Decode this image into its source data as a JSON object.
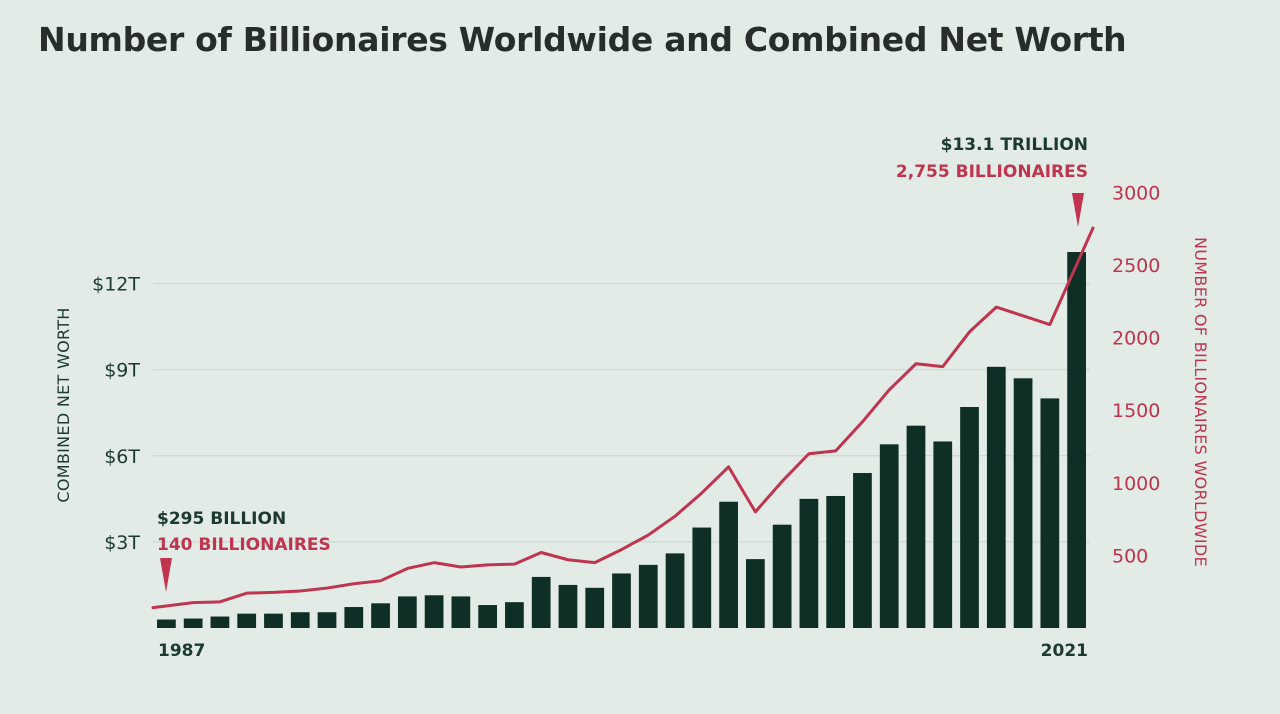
{
  "title": "Number of Billionaires Worldwide and Combined Net Worth",
  "colors": {
    "background": "#e2ebe5",
    "bars": "#0f2e26",
    "line": "#c0344f",
    "text_dark": "#1c3a2e",
    "grid": "#c9d5ce"
  },
  "chart_data": {
    "type": "bar",
    "categories": [
      1987,
      1988,
      1989,
      1990,
      1991,
      1992,
      1993,
      1994,
      1995,
      1996,
      1997,
      1998,
      1999,
      2000,
      2001,
      2002,
      2003,
      2004,
      2005,
      2006,
      2007,
      2008,
      2009,
      2010,
      2011,
      2012,
      2013,
      2014,
      2015,
      2016,
      2017,
      2018,
      2019,
      2020,
      2021
    ],
    "xtick_labels": {
      "first": "1987",
      "last": "2021"
    },
    "series": [
      {
        "axis": "left",
        "type": "bar",
        "values": [
          0.295,
          0.33,
          0.4,
          0.5,
          0.5,
          0.55,
          0.55,
          0.73,
          0.86,
          1.1,
          1.14,
          1.1,
          0.8,
          0.9,
          1.78,
          1.5,
          1.4,
          1.9,
          2.2,
          2.6,
          3.5,
          4.4,
          2.4,
          3.6,
          4.5,
          4.6,
          5.4,
          6.4,
          7.05,
          6.5,
          7.7,
          9.1,
          8.7,
          8.0,
          13.1
        ]
      },
      {
        "axis": "right",
        "type": "line",
        "values": [
          140,
          175,
          180,
          240,
          245,
          255,
          275,
          305,
          325,
          410,
          450,
          420,
          435,
          440,
          520,
          470,
          450,
          540,
          640,
          770,
          930,
          1110,
          800,
          1010,
          1200,
          1220,
          1420,
          1640,
          1820,
          1800,
          2040,
          2210,
          2150,
          2090,
          2755
        ]
      }
    ],
    "left_axis": {
      "label": "COMBINED NET WORTH",
      "ticks": [
        3,
        6,
        9,
        12
      ],
      "tick_labels": [
        "$3T",
        "$6T",
        "$9T",
        "$12T"
      ],
      "ylim": [
        0,
        14.5
      ]
    },
    "right_axis": {
      "label": "NUMBER OF BILLIONAIRES WORLDWIDE",
      "ticks": [
        500,
        1000,
        1500,
        2000,
        2500,
        3000
      ],
      "tick_labels": [
        "500",
        "1000",
        "1500",
        "2000",
        "2500",
        "3000"
      ],
      "ylim": [
        0,
        3000
      ]
    },
    "annotations": {
      "start": {
        "worth": "$295 BILLION",
        "count": "140 BILLIONAIRES"
      },
      "end": {
        "worth": "$13.1 TRILLION",
        "count": "2,755 BILLIONAIRES"
      }
    },
    "grid": true
  }
}
